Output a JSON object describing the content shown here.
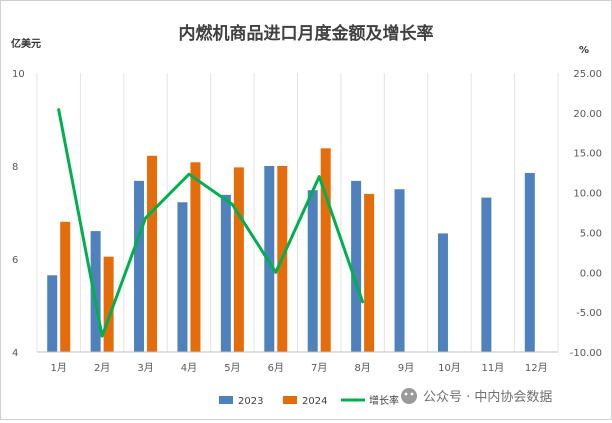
{
  "chart_data": {
    "type": "bar+line",
    "title": "内燃机商品进口月度金额及增长率",
    "ylabel_left": "亿美元",
    "ylabel_right": "%",
    "categories": [
      "1月",
      "2月",
      "3月",
      "4月",
      "5月",
      "6月",
      "7月",
      "8月",
      "9月",
      "10月",
      "11月",
      "12月"
    ],
    "ylim_left": [
      4,
      10
    ],
    "yticks_left": [
      4,
      6,
      8,
      10
    ],
    "ylim_right": [
      -10,
      25
    ],
    "yticks_right": [
      "-10.00",
      "-5.00",
      "0.00",
      "5.00",
      "10.00",
      "15.00",
      "20.00",
      "25.00"
    ],
    "series": [
      {
        "name": "2023",
        "kind": "bar",
        "color": "#4f81bd",
        "values": [
          5.65,
          6.6,
          7.68,
          7.22,
          7.38,
          8.0,
          7.48,
          7.68,
          7.5,
          6.55,
          7.32,
          7.85
        ]
      },
      {
        "name": "2024",
        "kind": "bar",
        "color": "#e46c0a",
        "values": [
          6.8,
          6.05,
          8.22,
          8.08,
          7.97,
          8.0,
          8.38,
          7.4,
          null,
          null,
          null,
          null
        ]
      },
      {
        "name": "增长率",
        "kind": "line",
        "axis": "right",
        "color": "#00b050",
        "values": [
          20.4,
          -8.0,
          6.8,
          12.3,
          8.5,
          0.0,
          12.0,
          -3.7,
          null,
          null,
          null,
          null
        ]
      }
    ],
    "legend_position": "bottom",
    "grid": "vertical"
  },
  "watermark": {
    "icon": "wechat-icon",
    "text": "公众号 · 中内协会数据"
  }
}
